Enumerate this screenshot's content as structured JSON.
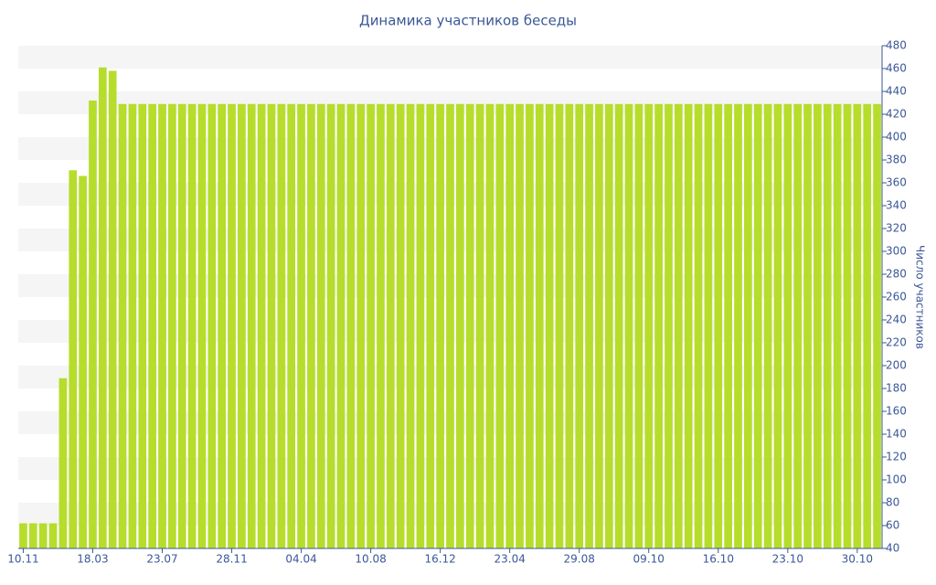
{
  "chart_data": {
    "type": "bar",
    "title": "Динамика участников беседы",
    "y_axis_label": "Число участников",
    "color": "#b6dd2b",
    "categories": [
      "10.11",
      null,
      null,
      null,
      null,
      null,
      null,
      "18.03",
      null,
      null,
      null,
      null,
      null,
      null,
      "23.07",
      null,
      null,
      null,
      null,
      null,
      null,
      "28.11",
      null,
      null,
      null,
      null,
      null,
      null,
      "04.04",
      null,
      null,
      null,
      null,
      null,
      null,
      "10.08",
      null,
      null,
      null,
      null,
      null,
      null,
      "16.12",
      null,
      null,
      null,
      null,
      null,
      null,
      "23.04",
      null,
      null,
      null,
      null,
      null,
      null,
      "29.08",
      null,
      null,
      null,
      null,
      null,
      null,
      "09.10",
      null,
      null,
      null,
      null,
      null,
      null,
      "16.10",
      null,
      null,
      null,
      null,
      null,
      null,
      "23.10",
      null,
      null,
      null,
      null,
      null,
      null,
      "30.10",
      null,
      null
    ],
    "values": [
      62,
      62,
      62,
      62,
      189,
      371,
      366,
      432,
      461,
      458,
      429,
      429,
      429,
      429,
      429,
      429,
      429,
      429,
      429,
      429,
      429,
      429,
      429,
      429,
      429,
      429,
      429,
      429,
      429,
      429,
      429,
      429,
      429,
      429,
      429,
      429,
      429,
      429,
      429,
      429,
      429,
      429,
      429,
      429,
      429,
      429,
      429,
      429,
      429,
      429,
      429,
      429,
      429,
      429,
      429,
      429,
      429,
      429,
      429,
      429,
      429,
      429,
      429,
      429,
      429,
      429,
      429,
      429,
      429,
      429,
      429,
      429,
      429,
      429,
      429,
      429,
      429,
      429,
      429,
      429,
      429,
      429,
      429,
      429,
      429,
      429,
      429
    ],
    "ylim": [
      40,
      480
    ],
    "yticks": [
      40,
      60,
      80,
      100,
      120,
      140,
      160,
      180,
      200,
      220,
      240,
      260,
      280,
      300,
      320,
      340,
      360,
      380,
      400,
      420,
      440,
      460,
      480
    ],
    "grid": true
  }
}
